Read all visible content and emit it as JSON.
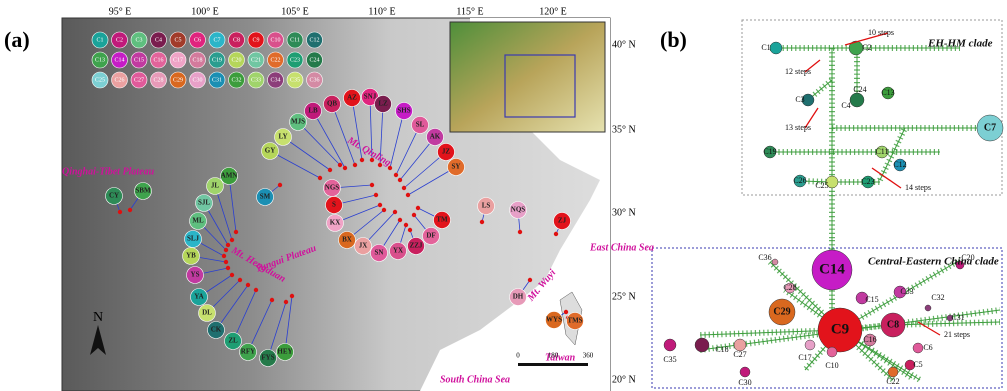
{
  "panel_labels": [
    "(a)",
    "(b)"
  ],
  "map": {
    "longitude_labels": [
      "95° E",
      "100° E",
      "105° E",
      "110° E",
      "115° E",
      "120° E"
    ],
    "latitude_labels": [
      "40° N",
      "35° N",
      "30° N",
      "25° N",
      "20° N"
    ],
    "haplotype_legend": [
      "C1",
      "C2",
      "C3",
      "C4",
      "C5",
      "C6",
      "C7",
      "C8",
      "C9",
      "C10",
      "C11",
      "C12",
      "C13",
      "C14",
      "C15",
      "C16",
      "C17",
      "C18",
      "C19",
      "C20",
      "C21",
      "C22",
      "C23",
      "C24",
      "C25",
      "C26",
      "C27",
      "C28",
      "C29",
      "C30",
      "C31",
      "C32",
      "C33",
      "C34",
      "C35",
      "C36"
    ],
    "regions": [
      "Qinghai-Tibet Plateau",
      "Mt. Hengduan",
      "Yungui Plateau",
      "Mt. Qinling",
      "East China Sea",
      "Mt. Wuyi",
      "Taiwan",
      "South China Sea"
    ],
    "sites": [
      "CY",
      "SBM",
      "AMN",
      "JL",
      "SJL",
      "ML",
      "SLJ",
      "YB",
      "YS",
      "YA",
      "DL",
      "CK",
      "ZL",
      "RFY",
      "FYS",
      "HEY",
      "SM",
      "MJS",
      "LY",
      "GY",
      "LB",
      "QB",
      "AZ",
      "SNJ",
      "LZ",
      "SHS",
      "SL",
      "AK",
      "JZ",
      "SY",
      "NGS",
      "S",
      "KX",
      "BX",
      "JX",
      "SN",
      "YX",
      "ZZJ",
      "DF",
      "TM",
      "LS",
      "NQS",
      "ZJ",
      "DH",
      "WYS",
      "TMS"
    ],
    "scale_labels": [
      "0",
      "180",
      "360"
    ],
    "north": "N"
  },
  "network": {
    "clades": [
      "EH-HM clade",
      "Central-Eastern China clade"
    ],
    "haplotypes": [
      "C1",
      "C2",
      "C3",
      "C4",
      "C24",
      "C13",
      "C7",
      "C19",
      "C11",
      "C12",
      "C23",
      "C25",
      "C26",
      "C14",
      "C36",
      "C28",
      "C15",
      "C33",
      "C29",
      "C9",
      "C32",
      "C16",
      "C31",
      "C8",
      "C6",
      "C5",
      "C22",
      "C10",
      "C17",
      "C18",
      "C27",
      "C30",
      "C35",
      "C20"
    ],
    "steps": [
      "10 steps",
      "12 steps",
      "13 steps",
      "14 steps",
      "21 steps"
    ]
  }
}
